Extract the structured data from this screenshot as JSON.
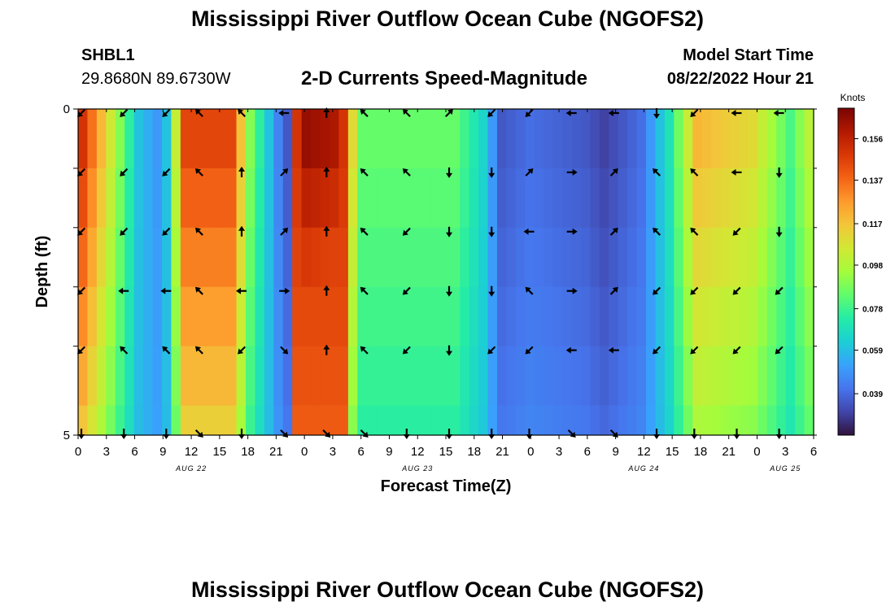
{
  "header": {
    "title": "Mississippi River Outflow Ocean Cube (NGOFS2)",
    "station_id": "SHBL1",
    "station_coords": "29.8680N  89.6730W",
    "subtitle": "2-D Currents Speed-Magnitude",
    "model_start_label": "Model Start Time",
    "model_start_value": "08/22/2022 Hour 21"
  },
  "footer": {
    "title": "Mississippi River Outflow Ocean Cube (NGOFS2)"
  },
  "chart_data": {
    "type": "heatmap",
    "title": "2-D Currents Speed-Magnitude",
    "xlabel": "Forecast Time(Z)",
    "ylabel": "Depth (ft)",
    "x_hours": [
      0,
      1,
      2,
      3,
      4,
      5,
      6,
      7,
      8,
      9,
      10,
      11,
      12,
      13,
      14,
      15,
      16,
      17,
      18,
      19,
      20,
      21,
      22,
      23,
      24,
      25,
      26,
      27,
      28,
      29,
      30,
      31,
      32,
      33,
      34,
      35,
      36,
      37,
      38,
      39,
      40,
      41,
      42,
      43,
      44,
      45,
      46,
      47,
      48,
      49,
      50,
      51,
      52,
      53,
      54,
      55,
      56,
      57,
      58,
      59,
      60,
      61,
      62,
      63,
      64,
      65,
      66,
      67,
      68,
      69,
      70,
      71,
      72,
      73,
      74,
      75,
      76,
      77,
      78
    ],
    "x_tick_labels": [
      "0",
      "3",
      "6",
      "9",
      "12",
      "15",
      "18",
      "21",
      "0",
      "3",
      "6",
      "9",
      "12",
      "15",
      "18",
      "21",
      "0",
      "3",
      "6",
      "9",
      "12",
      "15",
      "18",
      "21",
      "0",
      "3",
      "6"
    ],
    "date_labels": [
      {
        "label": "AUG 22",
        "hour": 12
      },
      {
        "label": "AUG 23",
        "hour": 36
      },
      {
        "label": "AUG 24",
        "hour": 60
      },
      {
        "label": "AUG 25",
        "hour": 75
      }
    ],
    "y_tick_labels": [
      "0",
      "5"
    ],
    "ylim": [
      0,
      5
    ],
    "depth_layers": 6,
    "colorbar": {
      "unit": "Knots",
      "ticks": [
        "0.156",
        "0.137",
        "0.117",
        "0.098",
        "0.078",
        "0.059",
        "0.039"
      ],
      "range": [
        0.02,
        0.17
      ],
      "colors": [
        "#30123b",
        "#4145ab",
        "#4675ed",
        "#39a2fc",
        "#1bcfd4",
        "#24eca6",
        "#61fc6c",
        "#a4fc3b",
        "#d1e834",
        "#f3c63a",
        "#fe9b2d",
        "#f36315",
        "#d93806",
        "#b11901",
        "#7a0403"
      ]
    },
    "speed_keyframes_surface": [
      [
        0,
        0.15
      ],
      [
        4,
        0.09
      ],
      [
        6,
        0.06
      ],
      [
        8,
        0.05
      ],
      [
        9,
        0.06
      ],
      [
        11,
        0.145
      ],
      [
        16,
        0.145
      ],
      [
        18,
        0.09
      ],
      [
        21,
        0.045
      ],
      [
        22.5,
        0.03
      ],
      [
        23.5,
        0.165
      ],
      [
        27,
        0.16
      ],
      [
        30,
        0.085
      ],
      [
        36,
        0.085
      ],
      [
        40,
        0.085
      ],
      [
        43,
        0.065
      ],
      [
        45,
        0.035
      ],
      [
        48,
        0.04
      ],
      [
        54,
        0.035
      ],
      [
        56,
        0.03
      ],
      [
        60,
        0.04
      ],
      [
        63,
        0.07
      ],
      [
        66,
        0.12
      ],
      [
        72,
        0.11
      ],
      [
        76,
        0.08
      ],
      [
        78,
        0.1
      ]
    ],
    "arrows_hours": [
      0,
      4.5,
      9,
      12.5,
      17,
      21.5,
      26,
      30,
      34.5,
      39,
      43.5,
      47.5,
      52,
      56.5,
      61,
      65,
      69.5,
      74
    ],
    "arrows_directions_deg_rows": [
      [
        135,
        135,
        135,
        225,
        225,
        180,
        270,
        225,
        225,
        315,
        135,
        135,
        180,
        180,
        90,
        135,
        180,
        180
      ],
      [
        135,
        135,
        135,
        225,
        270,
        315,
        270,
        225,
        225,
        90,
        90,
        315,
        0,
        315,
        225,
        225,
        180,
        90
      ],
      [
        135,
        135,
        135,
        225,
        270,
        315,
        270,
        225,
        135,
        90,
        90,
        180,
        0,
        315,
        225,
        225,
        135,
        90
      ],
      [
        135,
        180,
        180,
        225,
        180,
        0,
        270,
        225,
        135,
        90,
        90,
        225,
        0,
        315,
        135,
        135,
        135,
        135
      ],
      [
        135,
        225,
        225,
        225,
        135,
        45,
        270,
        225,
        135,
        90,
        135,
        135,
        180,
        180,
        135,
        135,
        135,
        135
      ],
      [
        90,
        90,
        90,
        45,
        90,
        45,
        45,
        45,
        90,
        90,
        90,
        90,
        45,
        45,
        90,
        90,
        90,
        90
      ]
    ]
  }
}
